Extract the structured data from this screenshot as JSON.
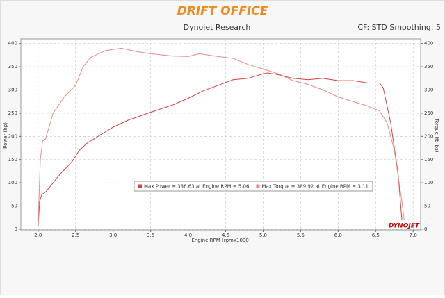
{
  "header": {
    "logo": "DRIFT OFFICE",
    "settings": "CF: STD Smoothing: 5",
    "brand": "DYNOJET"
  },
  "chart_data": {
    "type": "line",
    "title": "Dynojet Research",
    "xlabel": "Engine RPM (rpmx1000)",
    "ylabel": "Power (hp)",
    "y2label": "Torque (ft-lbs)",
    "xlim": [
      1.77,
      7.1
    ],
    "ylim": [
      -1.5,
      410
    ],
    "y2lim": [
      -1.5,
      410
    ],
    "xticks": [
      {
        "value": 2,
        "label": "2.0"
      },
      {
        "value": 2.5,
        "label": "2.5"
      },
      {
        "value": 3,
        "label": "3.0"
      },
      {
        "value": 3.5,
        "label": "3.5"
      },
      {
        "value": 4,
        "label": "4.0"
      },
      {
        "value": 4.5,
        "label": "4.5"
      },
      {
        "value": 5,
        "label": "5.0"
      },
      {
        "value": 5.5,
        "label": "5.5"
      },
      {
        "value": 6,
        "label": "6.0"
      },
      {
        "value": 6.5,
        "label": "6.5"
      },
      {
        "value": 7,
        "label": "7.0"
      }
    ],
    "yticks": [
      0,
      50,
      100,
      150,
      200,
      250,
      300,
      350,
      400
    ],
    "y2ticks": [
      0,
      50,
      100,
      150,
      200,
      250,
      300,
      350,
      400
    ],
    "grid": true,
    "legend": "center",
    "series": [
      {
        "name": "Max Power = 336.63 at Engine RPM = 5.06",
        "color": "#d94040",
        "axis": "y",
        "x": [
          2.0,
          2.02,
          2.05,
          2.1,
          2.2,
          2.3,
          2.45,
          2.55,
          2.65,
          2.8,
          3.0,
          3.2,
          3.5,
          3.8,
          4.0,
          4.2,
          4.4,
          4.6,
          4.8,
          5.0,
          5.06,
          5.2,
          5.4,
          5.6,
          5.8,
          6.0,
          6.2,
          6.4,
          6.55,
          6.6,
          6.7,
          6.8,
          6.85
        ],
        "values": [
          5,
          60,
          75,
          80,
          100,
          120,
          145,
          170,
          185,
          200,
          220,
          235,
          252,
          268,
          282,
          298,
          310,
          322,
          325,
          335,
          336.63,
          333,
          325,
          322,
          325,
          320,
          320,
          315,
          315,
          305,
          230,
          120,
          20
        ]
      },
      {
        "name": "Max Torque = 389.92 at Engine RPM = 3.11",
        "color": "#e88a8a",
        "axis": "y2",
        "x": [
          2.0,
          2.03,
          2.06,
          2.1,
          2.2,
          2.35,
          2.5,
          2.6,
          2.7,
          2.9,
          3.11,
          3.3,
          3.5,
          3.8,
          4.0,
          4.15,
          4.4,
          4.6,
          4.8,
          5.0,
          5.2,
          5.4,
          5.6,
          5.8,
          6.0,
          6.2,
          6.4,
          6.55,
          6.65,
          6.75,
          6.85,
          6.88
        ],
        "values": [
          10,
          150,
          190,
          195,
          250,
          285,
          310,
          350,
          370,
          385,
          389.92,
          383,
          378,
          373,
          372,
          378,
          372,
          368,
          355,
          345,
          335,
          320,
          312,
          300,
          285,
          275,
          265,
          255,
          230,
          170,
          60,
          20
        ]
      }
    ]
  }
}
